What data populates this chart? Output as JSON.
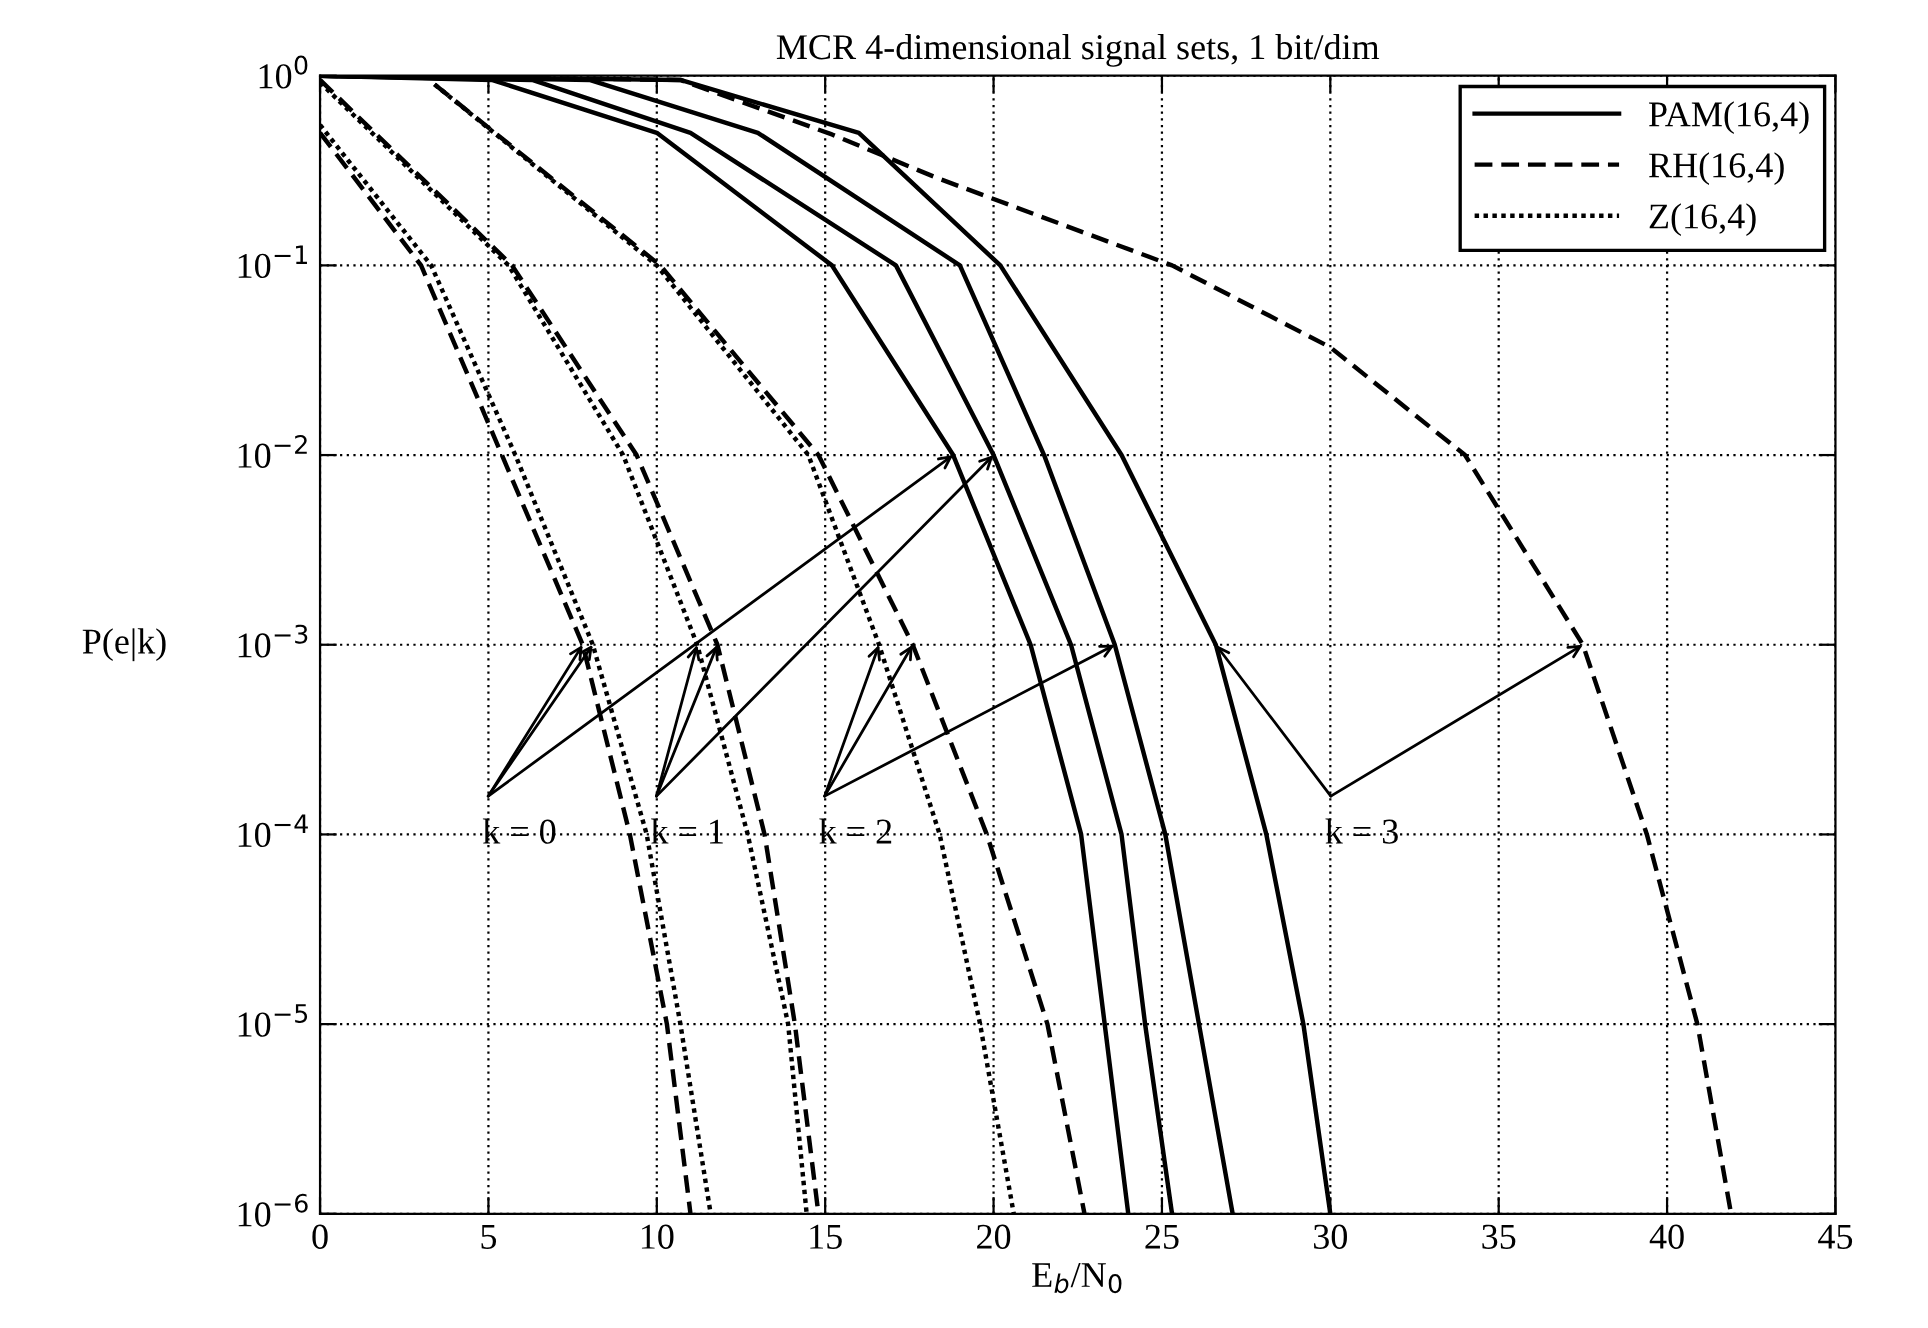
{
  "chart_data": {
    "type": "line",
    "title": "MCR 4-dimensional signal sets, 1 bit/dim",
    "xlabel": "E$_{b}$/N$_{0}$",
    "ylabel": "P(e|k)",
    "log": "y",
    "grid": true,
    "legend": "top right",
    "xlim": [
      0,
      45
    ],
    "xticks": [
      0,
      5,
      10,
      15,
      20,
      25,
      30,
      35,
      40,
      45
    ],
    "ylim": [
      1e-06,
      1
    ],
    "yticks": [
      {
        "value": 1e-06,
        "label": "10$^{−6}$"
      },
      {
        "value": 1e-05,
        "label": "10$^{−5}$"
      },
      {
        "value": 0.0001,
        "label": "10$^{−4}$"
      },
      {
        "value": 0.001,
        "label": "10$^{−3}$"
      },
      {
        "value": 0.01,
        "label": "10$^{−2}$"
      },
      {
        "value": 0.1,
        "label": "10$^{−1}$"
      },
      {
        "value": 1,
        "label": "10$^{0}$"
      }
    ],
    "series": [
      {
        "name": "PAM(16,4)",
        "color": "#000000",
        "line_style": "solid",
        "x": [
          0,
          5.1,
          10,
          15.2,
          18.8,
          21.1,
          22.6,
          23.3,
          24.0
        ],
        "values": [
          1,
          0.95,
          0.5,
          0.1,
          0.01,
          0.001,
          0.0001,
          1e-05,
          1e-06
        ]
      },
      {
        "name": "RH(16,4)",
        "color": "#000000",
        "line_style": "dashed",
        "x": [
          0,
          3.0,
          5.4,
          7.8,
          9.2,
          10.3,
          11.0
        ],
        "values": [
          0.5,
          0.1,
          0.01,
          0.001,
          0.0001,
          1e-05,
          1e-06
        ]
      },
      {
        "name": "Z(16,4)",
        "color": "#000000",
        "line_style": "dotted",
        "x": [
          0,
          3.3,
          5.8,
          8.1,
          9.7,
          10.7,
          11.6
        ],
        "values": [
          0.55,
          0.1,
          0.01,
          0.001,
          0.0001,
          1e-05,
          1e-06
        ]
      },
      {
        "color": "#000000",
        "line_style": "solid",
        "x": [
          0,
          6.3,
          11,
          17.1,
          20.0,
          22.3,
          23.8,
          24.5,
          25.3
        ],
        "values": [
          1,
          0.95,
          0.5,
          0.1,
          0.01,
          0.001,
          0.0001,
          1e-05,
          1e-06
        ]
      },
      {
        "color": "#000000",
        "line_style": "dashed",
        "x": [
          0,
          5.7,
          9.4,
          11.8,
          13.2,
          14.1,
          14.8
        ],
        "values": [
          0.95,
          0.1,
          0.01,
          0.001,
          0.0001,
          1e-05,
          1e-06
        ]
      },
      {
        "color": "#000000",
        "line_style": "dotted",
        "x": [
          0,
          5.6,
          9.0,
          11.2,
          12.7,
          13.9,
          14.45
        ],
        "values": [
          0.92,
          0.1,
          0.01,
          0.001,
          0.0001,
          1e-05,
          1e-06
        ]
      },
      {
        "color": "#000000",
        "line_style": "solid",
        "x": [
          0,
          8.0,
          13,
          19.0,
          21.5,
          23.6,
          25.1,
          26.1,
          27.1
        ],
        "values": [
          1,
          0.95,
          0.5,
          0.1,
          0.01,
          0.001,
          0.0001,
          1e-05,
          1e-06
        ]
      },
      {
        "color": "#000000",
        "line_style": "dashed",
        "x": [
          3.4,
          10.1,
          14.8,
          17.6,
          19.8,
          21.6,
          22.7
        ],
        "values": [
          0.9,
          0.1,
          0.01,
          0.001,
          0.0001,
          1e-05,
          1e-06
        ]
      },
      {
        "color": "#000000",
        "line_style": "dotted",
        "x": [
          3.4,
          10.0,
          14.5,
          16.6,
          18.4,
          19.6,
          20.6
        ],
        "values": [
          0.9,
          0.1,
          0.01,
          0.001,
          0.0001,
          1e-05,
          1e-06
        ]
      },
      {
        "color": "#000000",
        "line_style": "solid",
        "x": [
          0,
          10.7,
          16,
          20.2,
          23.8,
          26.6,
          28.1,
          29.2,
          30.0
        ],
        "values": [
          1,
          0.95,
          0.5,
          0.1,
          0.01,
          0.001,
          0.0001,
          1e-05,
          1e-06
        ]
      },
      {
        "color": "#000000",
        "line_style": "dashed",
        "x": [
          0,
          10.7,
          15.2,
          18.3,
          25.3,
          30,
          34.0,
          37.5,
          39.4,
          40.9,
          41.9
        ],
        "values": [
          1,
          0.95,
          0.49,
          0.29,
          0.1,
          0.037,
          0.01,
          0.001,
          0.0001,
          1e-05,
          1e-06
        ]
      }
    ],
    "annotations": [
      {
        "text": "k = 0",
        "x": 18.8,
        "y": 0.01
      },
      {
        "text": "k = 1",
        "x": 20.0,
        "y": 0.01
      },
      {
        "text": "k = 2",
        "x": 23.6,
        "y": 0.001
      },
      {
        "text": "k = 3",
        "x": 26.6,
        "y": 0.001
      }
    ]
  }
}
